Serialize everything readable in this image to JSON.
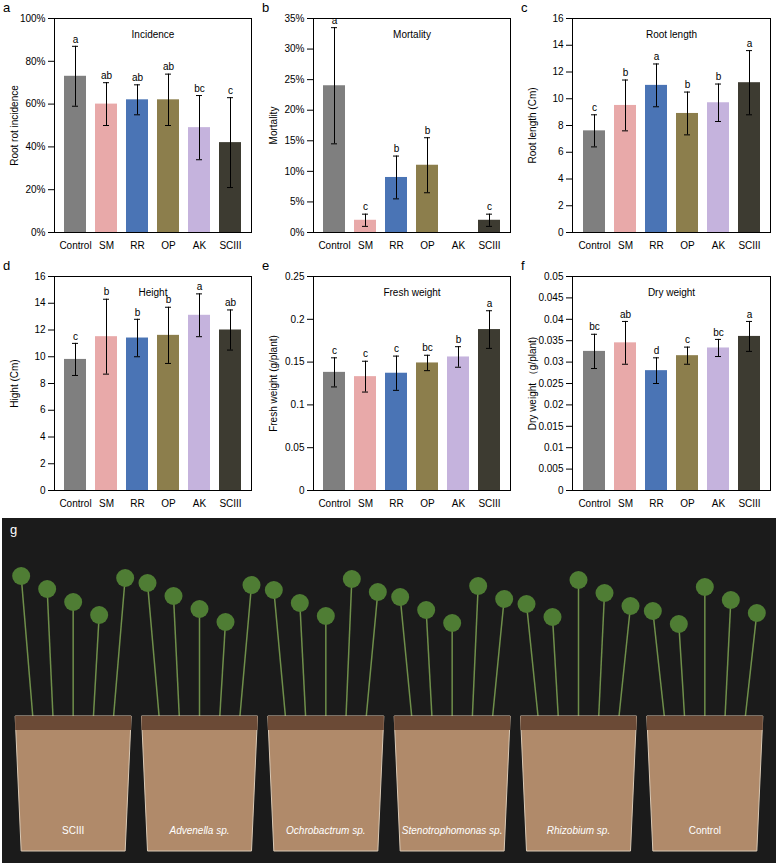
{
  "chart_data": [
    {
      "type": "bar",
      "panel_label": "a",
      "title": "Incidence",
      "y_label": "Root rot incidence",
      "categories": [
        "Control",
        "SM",
        "RR",
        "OP",
        "AK",
        "SCIII"
      ],
      "values": [
        73,
        60,
        62,
        62,
        49,
        42
      ],
      "errors": [
        14,
        10,
        7,
        12,
        15,
        21
      ],
      "letters": [
        "a",
        "ab",
        "ab",
        "ab",
        "bc",
        "c"
      ],
      "colors": [
        "#7f7f7f",
        "#e8a9a9",
        "#4a74b5",
        "#8c7e4c",
        "#c5b3dd",
        "#3d3b31"
      ],
      "ylim": [
        0,
        100
      ],
      "yticks": [
        {
          "value": 0,
          "label": "0%"
        },
        {
          "value": 20,
          "label": "20%"
        },
        {
          "value": 40,
          "label": "40%"
        },
        {
          "value": 60,
          "label": "60%"
        },
        {
          "value": 80,
          "label": "80%"
        },
        {
          "value": 100,
          "label": "100%"
        }
      ]
    },
    {
      "type": "bar",
      "panel_label": "b",
      "title": "Mortality",
      "y_label": "Mortality",
      "categories": [
        "Control",
        "SM",
        "RR",
        "OP",
        "AK",
        "SCIII"
      ],
      "values": [
        24,
        2,
        9,
        11,
        0,
        2
      ],
      "errors": [
        9.5,
        1,
        3.5,
        4.5,
        0,
        1
      ],
      "letters": [
        "a",
        "c",
        "b",
        "b",
        null,
        "c"
      ],
      "colors": [
        "#7f7f7f",
        "#e8a9a9",
        "#4a74b5",
        "#8c7e4c",
        "#c5b3dd",
        "#3d3b31"
      ],
      "ylim": [
        0,
        35
      ],
      "yticks": [
        {
          "value": 0,
          "label": "0%"
        },
        {
          "value": 5,
          "label": "5%"
        },
        {
          "value": 10,
          "label": "10%"
        },
        {
          "value": 15,
          "label": "15%"
        },
        {
          "value": 20,
          "label": "20%"
        },
        {
          "value": 25,
          "label": "25%"
        },
        {
          "value": 30,
          "label": "30%"
        },
        {
          "value": 35,
          "label": "35%"
        }
      ]
    },
    {
      "type": "bar",
      "panel_label": "c",
      "title": "Root length",
      "y_label": "Root length (Cm)",
      "categories": [
        "Control",
        "SM",
        "RR",
        "OP",
        "AK",
        "SCIII"
      ],
      "values": [
        7.6,
        9.5,
        11,
        8.9,
        9.7,
        11.2
      ],
      "errors": [
        1.2,
        1.9,
        1.6,
        1.6,
        1.4,
        2.4
      ],
      "letters": [
        "c",
        "b",
        "a",
        "b",
        "b",
        "a"
      ],
      "colors": [
        "#7f7f7f",
        "#e8a9a9",
        "#4a74b5",
        "#8c7e4c",
        "#c5b3dd",
        "#3d3b31"
      ],
      "ylim": [
        0,
        16
      ],
      "yticks": [
        0,
        2,
        4,
        6,
        8,
        10,
        12,
        14,
        16
      ]
    },
    {
      "type": "bar",
      "panel_label": "d",
      "title": "Height",
      "y_label": "Hight (Cm)",
      "categories": [
        "Control",
        "SM",
        "RR",
        "OP",
        "AK",
        "SCIII"
      ],
      "values": [
        9.8,
        11.5,
        11.4,
        11.6,
        13.1,
        12
      ],
      "errors": [
        1.2,
        2.8,
        1.4,
        2.1,
        1.6,
        1.5
      ],
      "letters": [
        "c",
        "b",
        "b",
        "b",
        "a",
        "ab"
      ],
      "colors": [
        "#7f7f7f",
        "#e8a9a9",
        "#4a74b5",
        "#8c7e4c",
        "#c5b3dd",
        "#3d3b31"
      ],
      "ylim": [
        0,
        16
      ],
      "yticks": [
        0,
        2,
        4,
        6,
        8,
        10,
        12,
        14,
        16
      ]
    },
    {
      "type": "bar",
      "panel_label": "e",
      "title": "Fresh weight",
      "y_label": "Fresh weight (g/plant)",
      "categories": [
        "Control",
        "SM",
        "RR",
        "OP",
        "AK",
        "SCIII"
      ],
      "values": [
        0.138,
        0.133,
        0.137,
        0.149,
        0.156,
        0.188
      ],
      "errors": [
        0.017,
        0.018,
        0.02,
        0.009,
        0.012,
        0.022
      ],
      "letters": [
        "c",
        "c",
        "c",
        "bc",
        "b",
        "a"
      ],
      "colors": [
        "#7f7f7f",
        "#e8a9a9",
        "#4a74b5",
        "#8c7e4c",
        "#c5b3dd",
        "#3d3b31"
      ],
      "ylim": [
        0,
        0.25
      ],
      "yticks": [
        0,
        0.05,
        0.1,
        0.15,
        0.2,
        0.25
      ]
    },
    {
      "type": "bar",
      "panel_label": "f",
      "title": "Dry weight",
      "y_label": "Dry weight （g/plant)",
      "categories": [
        "Control",
        "SM",
        "RR",
        "OP",
        "AK",
        "SCIII"
      ],
      "values": [
        0.0325,
        0.0345,
        0.028,
        0.0315,
        0.0333,
        0.036
      ],
      "errors": [
        0.004,
        0.005,
        0.003,
        0.002,
        0.002,
        0.0035
      ],
      "letters": [
        "bc",
        "ab",
        "d",
        "c",
        "bc",
        "a"
      ],
      "colors": [
        "#7f7f7f",
        "#e8a9a9",
        "#4a74b5",
        "#8c7e4c",
        "#c5b3dd",
        "#3d3b31"
      ],
      "ylim": [
        0,
        0.05
      ],
      "yticks": [
        0,
        0.005,
        0.01,
        0.015,
        0.02,
        0.025,
        0.03,
        0.035,
        0.04,
        0.045,
        0.05
      ]
    }
  ],
  "photo": {
    "panel_label": "g",
    "labels": [
      "SCIII",
      "Advenella sp.",
      "Ochrobactrum sp.",
      "Stenotrophomonas sp.",
      "Rhizobium sp.",
      "Control"
    ],
    "italic": [
      false,
      true,
      true,
      true,
      true,
      false
    ]
  }
}
